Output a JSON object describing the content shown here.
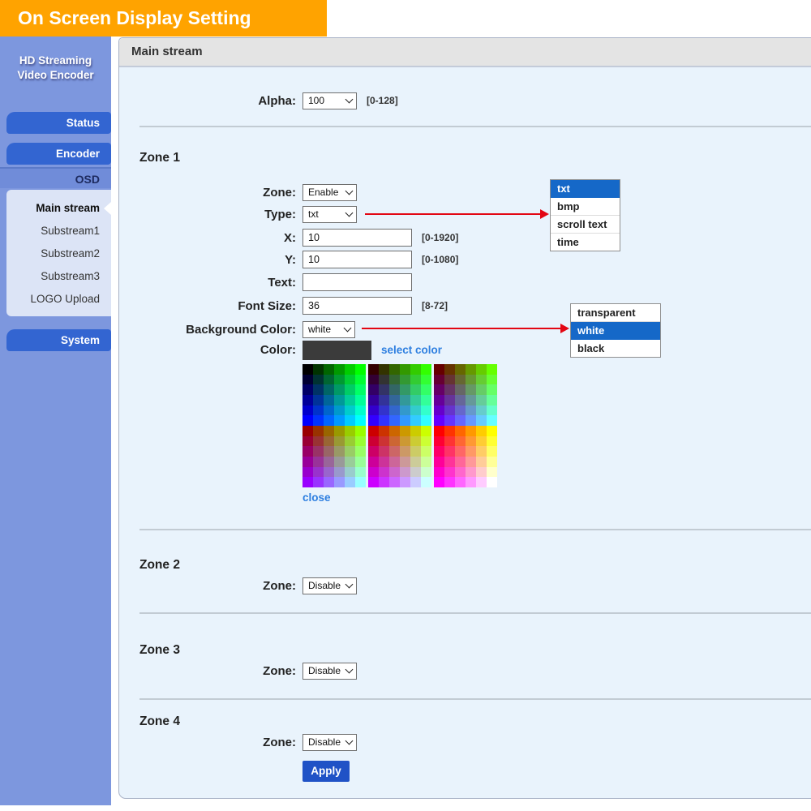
{
  "banner": {
    "title": "On Screen Display Setting",
    "bg_color": "#FFA300"
  },
  "sidebar": {
    "title_line1": "HD Streaming",
    "title_line2": "Video Encoder",
    "buttons": {
      "status": "Status",
      "encoder": "Encoder",
      "system": "System"
    },
    "osd": {
      "label": "OSD",
      "items": [
        {
          "label": "Main stream",
          "active": true
        },
        {
          "label": "Substream1",
          "active": false
        },
        {
          "label": "Substream2",
          "active": false
        },
        {
          "label": "Substream3",
          "active": false
        },
        {
          "label": "LOGO Upload",
          "active": false
        }
      ]
    }
  },
  "main": {
    "header": "Main stream",
    "alpha": {
      "label": "Alpha:",
      "value": "100",
      "hint": "[0-128]"
    },
    "zone1": {
      "heading": "Zone 1",
      "zone": {
        "label": "Zone:",
        "value": "Enable"
      },
      "type": {
        "label": "Type:",
        "value": "txt"
      },
      "x": {
        "label": "X:",
        "value": "10",
        "hint": "[0-1920]"
      },
      "y": {
        "label": "Y:",
        "value": "10",
        "hint": "[0-1080]"
      },
      "text": {
        "label": "Text:",
        "value": ""
      },
      "font_size": {
        "label": "Font Size:",
        "value": "36",
        "hint": "[8-72]"
      },
      "background_color": {
        "label": "Background Color:",
        "value": "white"
      },
      "color": {
        "label": "Color:",
        "swatch_color": "#3B3B3B",
        "link": "select color"
      },
      "close_link": "close"
    },
    "zone2": {
      "heading": "Zone 2",
      "zone": {
        "label": "Zone:",
        "value": "Disable"
      }
    },
    "zone3": {
      "heading": "Zone 3",
      "zone": {
        "label": "Zone:",
        "value": "Disable"
      }
    },
    "zone4": {
      "heading": "Zone 4",
      "zone": {
        "label": "Zone:",
        "value": "Disable"
      }
    },
    "apply_label": "Apply"
  },
  "popups": {
    "type_options": {
      "items": [
        "txt",
        "bmp",
        "scroll text",
        "time"
      ],
      "selected": "txt"
    },
    "background_options": {
      "items": [
        "transparent",
        "white",
        "black"
      ],
      "selected": "white"
    },
    "highlight_color": "#1568C8"
  },
  "palette": {
    "steps": [
      "00",
      "33",
      "66",
      "99",
      "CC",
      "FF"
    ],
    "top_reds": [
      "00",
      "33",
      "66"
    ],
    "bottom_reds": [
      "99",
      "CC",
      "FF"
    ]
  },
  "colors": {
    "accent_red": "#E30613",
    "link_blue": "#2E7FE0",
    "apply_bg": "#2052C6",
    "sidebar_bg": "#7D97DE",
    "nav_button_bg": "#3365D1",
    "content_bg": "#E9F3FC"
  }
}
